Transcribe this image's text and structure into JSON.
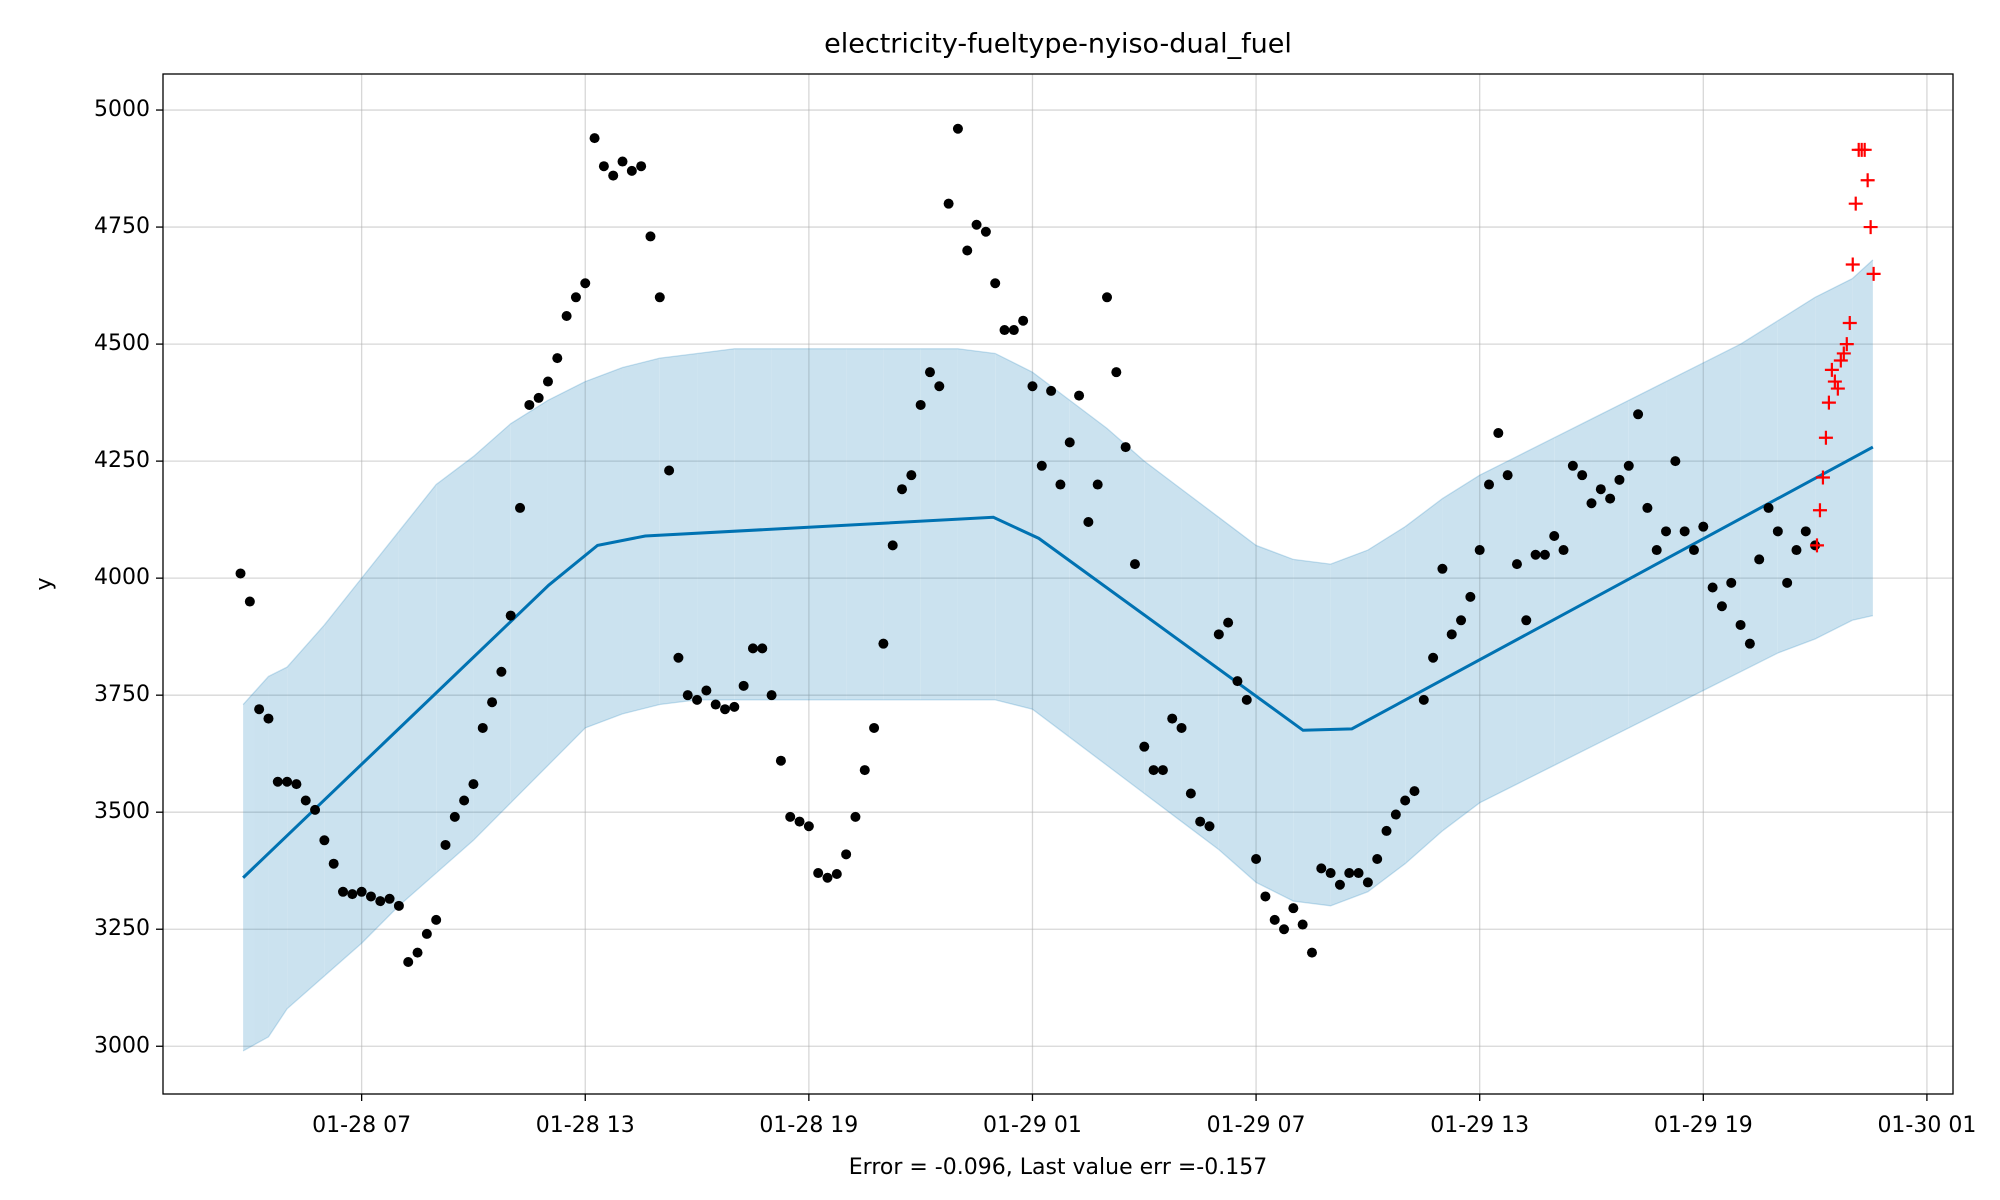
{
  "chart_data": {
    "type": "forecast",
    "title": "electricity-fueltype-nyiso-dual_fuel",
    "xlabel": "Error = -0.096, Last value err =-0.157",
    "ylabel": "y",
    "xlim": [
      1.67,
      49.7
    ],
    "ylim": [
      2898,
      5077
    ],
    "xticks": [
      {
        "value": 7,
        "label": "01-28 07"
      },
      {
        "value": 13,
        "label": "01-28 13"
      },
      {
        "value": 19,
        "label": "01-28 19"
      },
      {
        "value": 25,
        "label": "01-29 01"
      },
      {
        "value": 31,
        "label": "01-29 07"
      },
      {
        "value": 37,
        "label": "01-29 13"
      },
      {
        "value": 43,
        "label": "01-29 19"
      },
      {
        "value": 49,
        "label": "01-30 01"
      }
    ],
    "yticks": [
      3000,
      3250,
      3500,
      3750,
      4000,
      4250,
      4500,
      4750,
      5000
    ],
    "grid": true,
    "series": [
      {
        "type": "band",
        "color": "#0072B2",
        "x": [
          3.82,
          4.5,
          5,
          6,
          7,
          8,
          9,
          10,
          11,
          12,
          13,
          14,
          15,
          16,
          17,
          18,
          19,
          20,
          21,
          22,
          23,
          24,
          25,
          26,
          27,
          28,
          29,
          30,
          31,
          32,
          33,
          34,
          35,
          36,
          37,
          38,
          39,
          40,
          41,
          42,
          43,
          44,
          45,
          46,
          47,
          47.55
        ],
        "upper": [
          3730,
          3790,
          3810,
          3900,
          4000,
          4100,
          4200,
          4260,
          4330,
          4380,
          4420,
          4450,
          4470,
          4480,
          4490,
          4490,
          4490,
          4490,
          4490,
          4490,
          4490,
          4480,
          4440,
          4380,
          4320,
          4250,
          4190,
          4130,
          4070,
          4040,
          4030,
          4060,
          4110,
          4170,
          4220,
          4260,
          4300,
          4340,
          4380,
          4420,
          4460,
          4500,
          4550,
          4600,
          4640,
          4680
        ],
        "lower": [
          2990,
          3020,
          3080,
          3150,
          3220,
          3300,
          3370,
          3440,
          3520,
          3600,
          3680,
          3710,
          3730,
          3740,
          3740,
          3740,
          3740,
          3740,
          3740,
          3740,
          3740,
          3740,
          3720,
          3660,
          3600,
          3540,
          3480,
          3420,
          3350,
          3310,
          3300,
          3330,
          3390,
          3460,
          3520,
          3560,
          3600,
          3640,
          3680,
          3720,
          3760,
          3800,
          3840,
          3870,
          3910,
          3920
        ]
      },
      {
        "type": "line",
        "color": "#0072B2",
        "x": [
          3.82,
          12.02,
          13.33,
          14.61,
          23.95,
          25.17,
          32.26,
          33.57,
          47.55
        ],
        "values": [
          3360,
          3985,
          4070,
          4090,
          4130,
          4085,
          3675,
          3678,
          4280
        ]
      },
      {
        "type": "scatter",
        "marker": "dot",
        "color": "#000000",
        "x": [
          3.75,
          4.0,
          4.25,
          4.5,
          4.75,
          5.0,
          5.25,
          5.5,
          5.75,
          6.0,
          6.25,
          6.5,
          6.75,
          7.0,
          7.25,
          7.5,
          7.75,
          8.0,
          8.25,
          8.5,
          8.75,
          9.0,
          9.25,
          9.5,
          9.75,
          10.0,
          10.25,
          10.5,
          10.75,
          11.0,
          11.25,
          11.5,
          11.75,
          12.0,
          12.25,
          12.5,
          12.75,
          13.0,
          13.25,
          13.5,
          13.75,
          14.0,
          14.25,
          14.5,
          14.75,
          15.0,
          15.25,
          15.5,
          15.75,
          16.0,
          16.25,
          16.5,
          16.75,
          17.0,
          17.25,
          17.5,
          17.75,
          18.0,
          18.25,
          18.5,
          18.75,
          19.0,
          19.25,
          19.5,
          19.75,
          20.0,
          20.25,
          20.5,
          20.75,
          21.0,
          21.25,
          21.5,
          21.75,
          22.0,
          22.25,
          22.5,
          22.75,
          23.0,
          23.25,
          23.5,
          23.75,
          24.0,
          24.25,
          24.5,
          24.75,
          25.0,
          25.25,
          25.5,
          25.75,
          26.0,
          26.25,
          26.5,
          26.75,
          27.0,
          27.25,
          27.5,
          27.75,
          28.0,
          28.25,
          28.5,
          28.75,
          29.0,
          29.25,
          29.5,
          29.75,
          30.0,
          30.25,
          30.5,
          30.75,
          31.0,
          31.25,
          31.5,
          31.75,
          32.0,
          32.25,
          32.5,
          32.75,
          33.0,
          33.25,
          33.5,
          33.75,
          34.0,
          34.25,
          34.5,
          34.75,
          35.0,
          35.25,
          35.5,
          35.75,
          36.0,
          36.25,
          36.5,
          36.75,
          37.0,
          37.25,
          37.5,
          37.75,
          38.0,
          38.25,
          38.5,
          38.75,
          39.0,
          39.25,
          39.5,
          39.75,
          40.0,
          40.25,
          40.5,
          40.75,
          41.0,
          41.25,
          41.5,
          41.75,
          42.0,
          42.25,
          42.5,
          42.75,
          43.0,
          43.25,
          43.5,
          43.75,
          44.0,
          44.25,
          44.5,
          44.75,
          45.0,
          45.25,
          45.5,
          45.75,
          46.0
        ],
        "values": [
          4010,
          3950,
          3720,
          3700,
          3565,
          3565,
          3560,
          3525,
          3505,
          3440,
          3390,
          3330,
          3325,
          3330,
          3320,
          3310,
          3315,
          3300,
          3180,
          3200,
          3240,
          3270,
          3430,
          3490,
          3525,
          3560,
          3680,
          3735,
          3800,
          3920,
          4150,
          4370,
          4385,
          4420,
          4470,
          4560,
          4600,
          4630,
          4940,
          4880,
          4860,
          4890,
          4870,
          4880,
          4730,
          4600,
          4230,
          3830,
          3750,
          3740,
          3760,
          3730,
          3720,
          3725,
          3770,
          3850,
          3850,
          3750,
          3610,
          3490,
          3480,
          3470,
          3370,
          3360,
          3368,
          3410,
          3490,
          3590,
          3680,
          3860,
          4070,
          4190,
          4220,
          4370,
          4440,
          4410,
          4800,
          4960,
          4700,
          4755,
          4740,
          4630,
          4530,
          4530,
          4550,
          4410,
          4240,
          4400,
          4200,
          4290,
          4390,
          4120,
          4200,
          4600,
          4440,
          4280,
          4030,
          3640,
          3590,
          3590,
          3700,
          3680,
          3540,
          3480,
          3470,
          3880,
          3905,
          3780,
          3740,
          3400,
          3320,
          3270,
          3250,
          3295,
          3260,
          3200,
          3380,
          3370,
          3345,
          3370,
          3370,
          3350,
          3400,
          3460,
          3495,
          3525,
          3545,
          3740,
          3830,
          4020,
          3880,
          3910,
          3960,
          4060,
          4200,
          4310,
          4220,
          4030,
          3910,
          4050,
          4050,
          4090,
          4060,
          4240,
          4220,
          4160,
          4190,
          4170,
          4210,
          4240,
          4350,
          4150,
          4060,
          4100,
          4250,
          4100,
          4060,
          4110,
          3980,
          3940,
          3990,
          3900,
          3860,
          4040,
          4150,
          4100,
          3990,
          4060,
          4100,
          4070
        ]
      },
      {
        "type": "scatter",
        "marker": "plus",
        "color": "#ff0000",
        "x": [
          46.05,
          46.13,
          46.21,
          46.29,
          46.37,
          46.45,
          46.53,
          46.61,
          46.69,
          46.77,
          46.85,
          46.93,
          47.01,
          47.09,
          47.17,
          47.25,
          47.33,
          47.41,
          47.49,
          47.57
        ],
        "values": [
          4070,
          4145,
          4215,
          4300,
          4375,
          4445,
          4420,
          4405,
          4465,
          4480,
          4500,
          4545,
          4670,
          4800,
          4915,
          4915,
          4915,
          4850,
          4750,
          4650
        ]
      }
    ]
  }
}
